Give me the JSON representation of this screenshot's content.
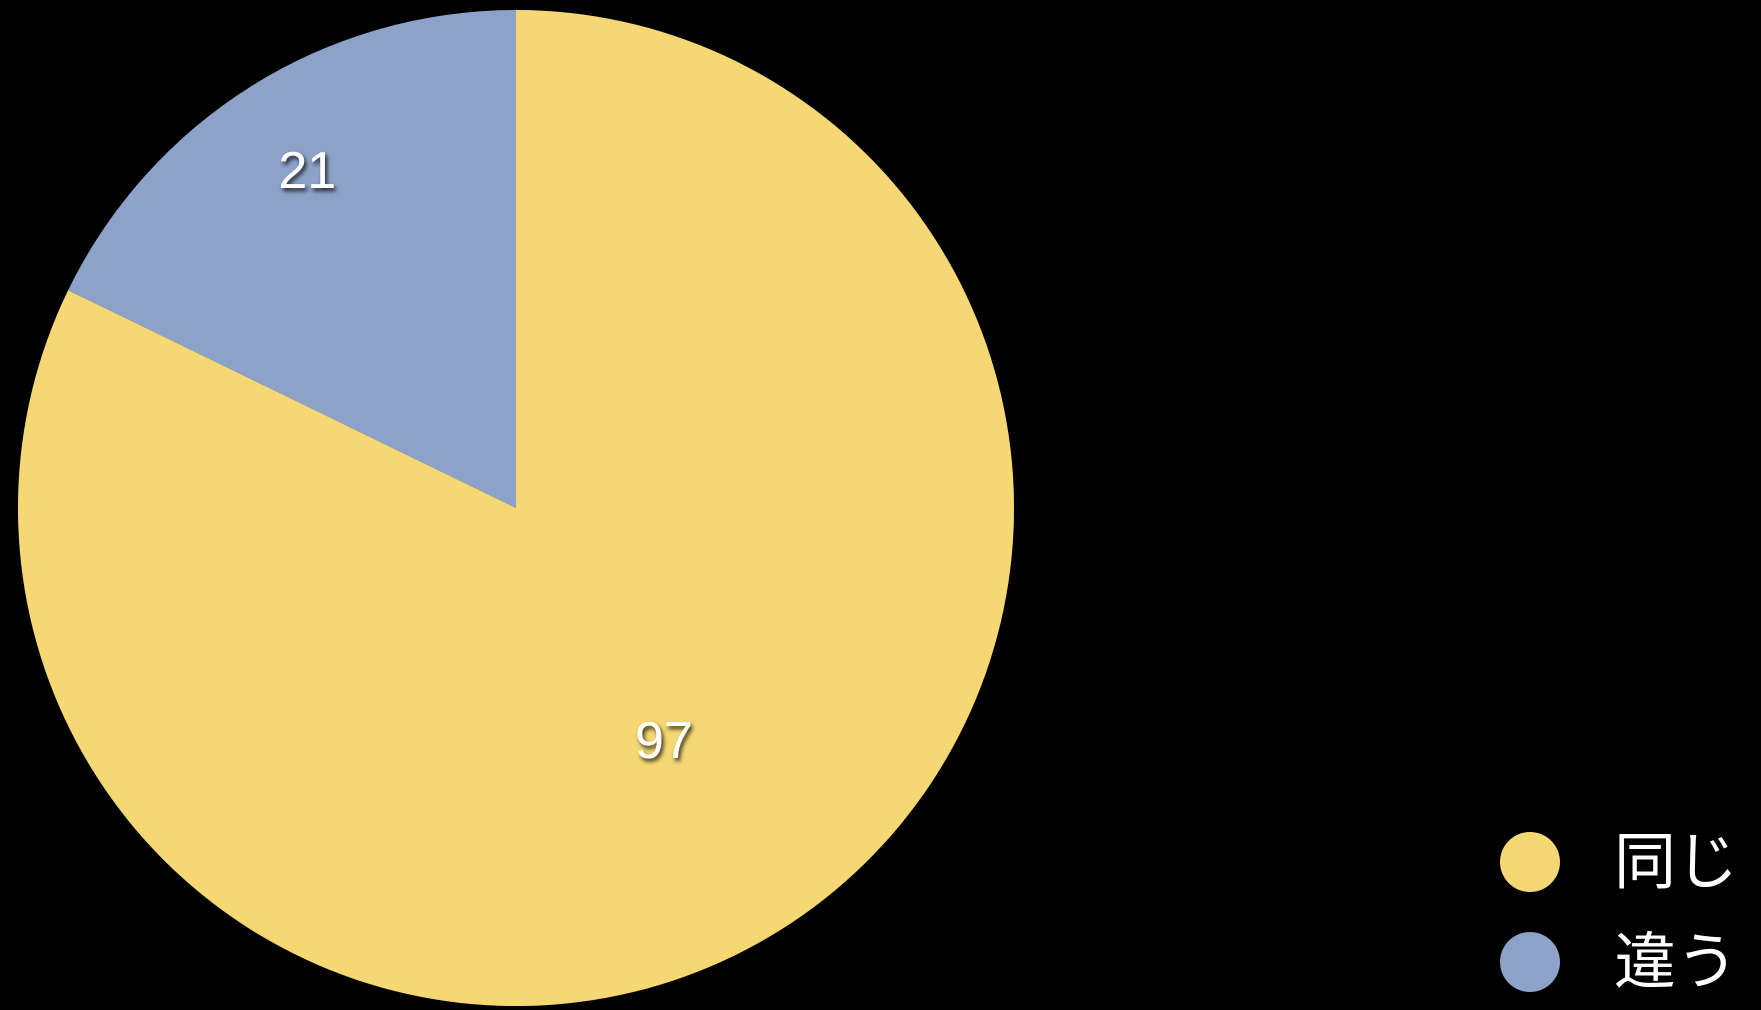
{
  "chart_data": {
    "type": "pie",
    "series": [
      {
        "name": "同じ",
        "value": 97,
        "label": "97",
        "color": "#F5D873"
      },
      {
        "name": "違う",
        "value": 21,
        "label": "21",
        "color": "#8DA2C8"
      }
    ],
    "legend_position": "bottom-right",
    "start_angle_deg": 0,
    "direction": "clockwise"
  },
  "legend": {
    "items": [
      {
        "label": "同じ",
        "color": "#F5D873"
      },
      {
        "label": "違う",
        "color": "#8DA2C8"
      }
    ]
  }
}
